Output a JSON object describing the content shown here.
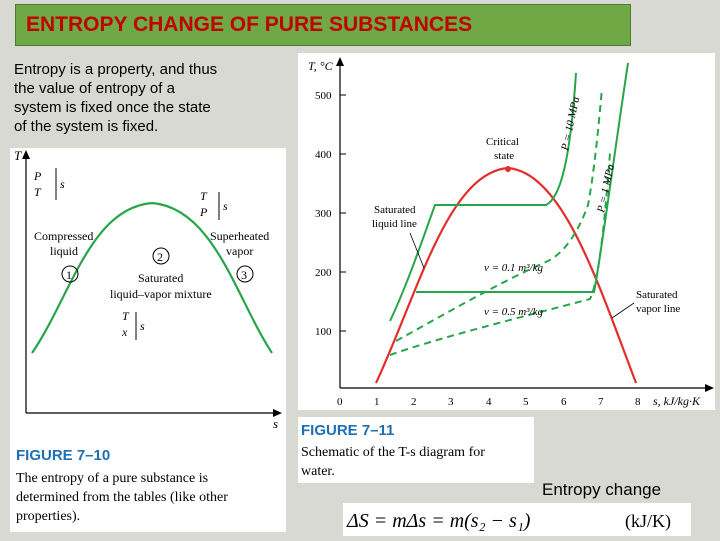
{
  "title": "ENTROPY CHANGE OF PURE SUBSTANCES",
  "intro_lines": [
    "Entropy is a property, and thus",
    "the value of entropy of a",
    "system is fixed once the state",
    "of the system is fixed."
  ],
  "fig710": {
    "axis_t": "T",
    "axis_s": "s",
    "state1_p": "P",
    "state1_t": "T",
    "state1_eq": "s",
    "state3_t": "T",
    "state3_p": "P",
    "state3_s": "s",
    "label_compressed_1": "Compressed",
    "label_compressed_2": "liquid",
    "label_superheated_1": "Superheated",
    "label_superheated_2": "vapor",
    "label_saturated_1": "Saturated",
    "label_saturated_2": "liquid–vapor mixture",
    "state2_t": "T",
    "state2_x": "x",
    "state2_eq": "s",
    "marker_1": "1",
    "marker_2": "2",
    "marker_3": "3",
    "fig_label": "FIGURE 7–10",
    "caption_lines": [
      "The entropy of a pure substance is",
      "determined from the tables (like other",
      "properties)."
    ]
  },
  "fig711": {
    "y_axis_label": "T, °C",
    "x_axis_label": "s, kJ/kg·K",
    "y_ticks": [
      "500",
      "400",
      "300",
      "200",
      "100"
    ],
    "x_ticks": [
      "0",
      "1",
      "2",
      "3",
      "4",
      "5",
      "6",
      "7",
      "8"
    ],
    "critical_1": "Critical",
    "critical_2": "state",
    "sat_liquid_1": "Saturated",
    "sat_liquid_2": "liquid line",
    "sat_vapor_1": "Saturated",
    "sat_vapor_2": "vapor line",
    "p_10": "P = 10 MPa",
    "p_1": "P = 1 MPa",
    "v_01": "v = 0.1 m³/kg",
    "v_05": "v = 0.5 m³/kg",
    "fig_label": "FIGURE 7–11",
    "caption_lines": [
      "Schematic of the T-s diagram for",
      "water."
    ]
  },
  "entropy_change_label": "Entropy change",
  "formula": "ΔS = mΔs = m(s₂ − s₁)",
  "formula_unit": "(kJ/K)"
}
